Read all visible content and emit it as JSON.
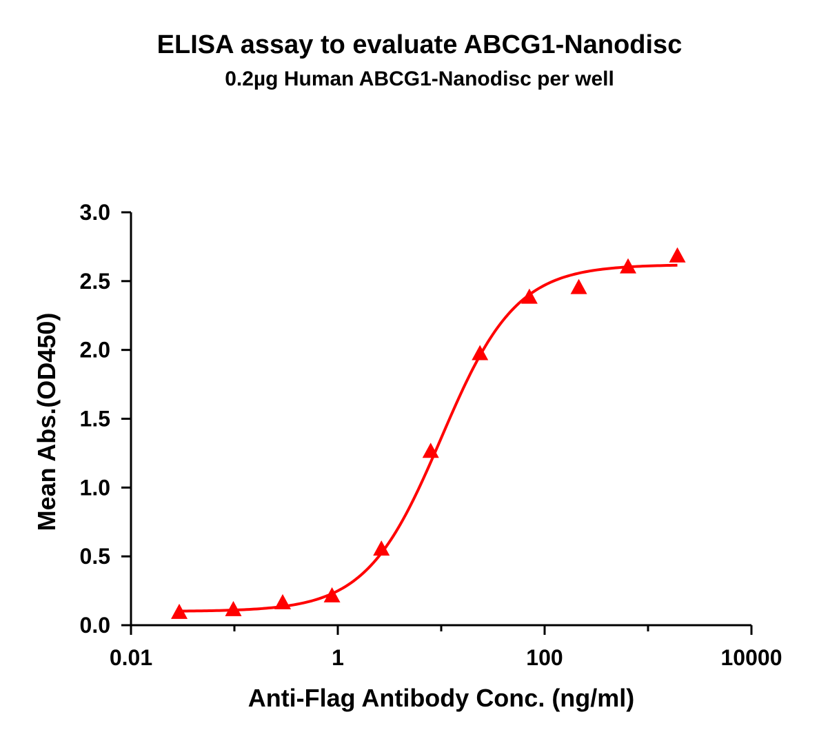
{
  "chart_data": {
    "type": "scatter",
    "title": "ELISA assay to evaluate ABCG1-Nanodisc",
    "subtitle": "0.2µg Human ABCG1-Nanodisc per well",
    "xlabel": "Anti-Flag Antibody Conc. (ng/ml)",
    "ylabel": "Mean Abs.(OD450)",
    "x_scale": "log",
    "xlim": [
      0.01,
      10000
    ],
    "ylim": [
      0,
      3.0
    ],
    "x_ticks": [
      0.01,
      1,
      100,
      10000
    ],
    "x_tick_labels": [
      "0.01",
      "1",
      "100",
      "10000"
    ],
    "y_ticks": [
      0,
      0.5,
      1.0,
      1.5,
      2.0,
      2.5,
      3.0
    ],
    "y_tick_labels": [
      "0.0",
      "0.5",
      "1.0",
      "1.5",
      "2.0",
      "2.5",
      "3.0"
    ],
    "grid": false,
    "legend": "none",
    "color": "#ff0000",
    "marker": "triangle",
    "series": [
      {
        "x": [
          0.0293,
          0.0977,
          0.293,
          0.879,
          2.64,
          7.91,
          23.7,
          71.2,
          214,
          641,
          1922
        ],
        "y": [
          0.09,
          0.11,
          0.16,
          0.21,
          0.55,
          1.26,
          1.97,
          2.38,
          2.45,
          2.6,
          2.68
        ]
      }
    ],
    "fit": {
      "model": "4PL",
      "bottom": 0.1,
      "top": 2.62,
      "ec50": 10.0,
      "hill": 1.2
    }
  }
}
